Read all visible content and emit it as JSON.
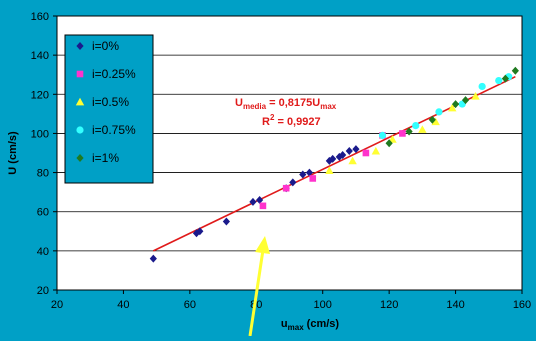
{
  "colors": {
    "background": "#00a0c6",
    "plot_area": "#ffffff",
    "trendline": "#e01a1a",
    "annotation_text": "#e01a1a",
    "arrow": "#ffff33"
  },
  "chart_data": {
    "type": "scatter",
    "title": "",
    "xlabel_main": "u",
    "xlabel_sub": "max",
    "xlabel_unit": "(cm/s)",
    "ylabel": "U (cm/s)",
    "xlim": [
      20,
      160
    ],
    "ylim": [
      20,
      160
    ],
    "xticks": [
      20,
      40,
      60,
      80,
      100,
      120,
      140,
      160
    ],
    "yticks": [
      20,
      40,
      60,
      80,
      100,
      120,
      140,
      160
    ],
    "grid": "horizontal",
    "legend_position": "upper-left",
    "series": [
      {
        "name": "i=0%",
        "color": "#1a1a8c",
        "marker": "diamond",
        "points": [
          [
            49,
            36
          ],
          [
            62,
            49
          ],
          [
            63,
            50
          ],
          [
            71,
            55
          ],
          [
            79,
            65
          ],
          [
            81,
            66
          ],
          [
            89,
            72
          ],
          [
            91,
            75
          ],
          [
            94,
            79
          ],
          [
            96,
            80
          ],
          [
            102,
            86
          ],
          [
            103,
            87
          ],
          [
            105,
            88
          ],
          [
            106,
            89
          ],
          [
            108,
            91
          ],
          [
            110,
            92
          ]
        ]
      },
      {
        "name": "i=0.25%",
        "color": "#ff33cc",
        "marker": "square",
        "points": [
          [
            82,
            63
          ],
          [
            89,
            72
          ],
          [
            97,
            77
          ],
          [
            113,
            90
          ],
          [
            118,
            99
          ],
          [
            124,
            100
          ]
        ]
      },
      {
        "name": "i=0.5%",
        "color": "#ffff33",
        "marker": "triangle",
        "points": [
          [
            102,
            81
          ],
          [
            109,
            86
          ],
          [
            116,
            91
          ],
          [
            121,
            97
          ],
          [
            130,
            102
          ],
          [
            134,
            106
          ],
          [
            139,
            113
          ],
          [
            146,
            119
          ]
        ]
      },
      {
        "name": "i=0.75%",
        "color": "#33ffff",
        "marker": "circle",
        "points": [
          [
            118,
            99
          ],
          [
            128,
            104
          ],
          [
            135,
            111
          ],
          [
            142,
            115
          ],
          [
            148,
            124
          ],
          [
            153,
            127
          ],
          [
            156,
            129
          ]
        ]
      },
      {
        "name": "i=1%",
        "color": "#1f7a1f",
        "marker": "diamond",
        "points": [
          [
            120,
            95
          ],
          [
            126,
            101
          ],
          [
            133,
            107
          ],
          [
            140,
            115
          ],
          [
            143,
            117
          ],
          [
            155,
            128
          ],
          [
            158,
            132
          ]
        ]
      }
    ],
    "trendline": {
      "x": [
        49,
        158
      ],
      "y": [
        40,
        129
      ]
    },
    "annotation_line1_main": "U",
    "annotation_line1_sub1": "media",
    "annotation_line1_mid": " = 0,8175U",
    "annotation_line1_sub2": "max",
    "annotation_line2_main": "R",
    "annotation_line2_sup": "2",
    "annotation_line2_tail": " = 0,9927"
  }
}
